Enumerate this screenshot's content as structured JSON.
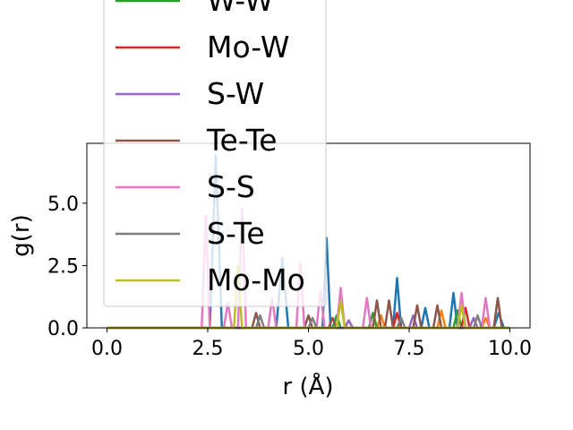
{
  "chart_data": {
    "type": "line",
    "title": "",
    "xlabel": "r (Å)",
    "ylabel": "g(r)",
    "xlim": [
      -0.5,
      10.5
    ],
    "ylim": [
      0.0,
      7.4
    ],
    "xticks": [
      {
        "value": 0.0,
        "label": "0.0"
      },
      {
        "value": 2.5,
        "label": "2.5"
      },
      {
        "value": 5.0,
        "label": "5.0"
      },
      {
        "value": 7.5,
        "label": "7.5"
      },
      {
        "value": 10.0,
        "label": "10.0"
      }
    ],
    "yticks": [
      {
        "value": 0.0,
        "label": "0.0"
      },
      {
        "value": 2.5,
        "label": "2.5"
      },
      {
        "value": 5.0,
        "label": "5.0"
      }
    ],
    "grid": false,
    "legend_location": "upper-left, partially clipped above the figure",
    "series": [
      {
        "name": "",
        "color": "#1f77b4",
        "x": [
          0.0,
          2.2,
          2.55,
          2.7,
          2.85,
          3.2,
          4.2,
          4.35,
          4.5,
          5.35,
          5.45,
          5.55,
          5.9,
          6.8,
          7.1,
          7.2,
          7.3,
          7.8,
          7.9,
          8.0,
          8.5,
          8.6,
          8.7,
          9.6,
          9.72,
          9.85,
          10.0
        ],
        "y": [
          0,
          0,
          0,
          6.9,
          0,
          0,
          0,
          2.8,
          0,
          0,
          3.6,
          0,
          0,
          0,
          0,
          2.0,
          0,
          0,
          0.8,
          0,
          0,
          1.4,
          0,
          0,
          0.6,
          0,
          0
        ]
      },
      {
        "name": "",
        "color": "#ff7f0e",
        "x": [
          0.0,
          6.0,
          6.7,
          6.8,
          6.9,
          8.2,
          8.3,
          8.4,
          9.3,
          9.4,
          9.5,
          10.0
        ],
        "y": [
          0,
          0,
          0,
          0.5,
          0,
          0,
          0.7,
          0,
          0,
          0.4,
          0,
          0
        ]
      },
      {
        "name": "W-W",
        "color": "#2ca02c",
        "x": [
          0.0,
          5.6,
          5.7,
          5.8,
          6.5,
          6.6,
          6.7,
          8.6,
          8.7,
          8.8,
          10.0
        ],
        "y": [
          0,
          0,
          0.5,
          0,
          0,
          0.6,
          0,
          0,
          0.7,
          0,
          0
        ]
      },
      {
        "name": "Mo-W",
        "color": "#d62728",
        "x": [
          0.0,
          7.1,
          7.2,
          7.3,
          8.8,
          8.9,
          9.0,
          10.0
        ],
        "y": [
          0,
          0,
          0.6,
          0,
          0,
          0.8,
          0,
          0
        ]
      },
      {
        "name": "S-W",
        "color": "#9467bd",
        "x": [
          0.0,
          5.9,
          6.0,
          6.1,
          7.5,
          7.6,
          7.7,
          9.0,
          9.1,
          9.2,
          10.0
        ],
        "y": [
          0,
          0,
          0.3,
          0,
          0,
          0.5,
          0,
          0,
          0.4,
          0,
          0
        ]
      },
      {
        "name": "Te-Te",
        "color": "#8c564b",
        "x": [
          0.0,
          3.6,
          3.7,
          3.8,
          4.9,
          5.0,
          5.1,
          5.5,
          5.6,
          5.7,
          6.6,
          6.7,
          6.8,
          6.9,
          7.0,
          7.1,
          7.6,
          7.7,
          7.8,
          8.1,
          8.2,
          8.3,
          9.6,
          9.7,
          9.8,
          10.0
        ],
        "y": [
          0,
          0,
          0.6,
          0,
          0,
          0.5,
          0,
          0,
          0.4,
          0,
          0,
          1.1,
          0,
          0,
          1.1,
          0,
          0,
          0.9,
          0,
          0,
          0.9,
          0,
          0,
          1.2,
          0,
          0
        ]
      },
      {
        "name": "S-S",
        "color": "#e377c2",
        "x": [
          0.0,
          2.35,
          2.45,
          2.55,
          2.9,
          3.0,
          3.1,
          3.25,
          3.35,
          3.45,
          4.0,
          4.1,
          4.2,
          4.7,
          4.8,
          4.9,
          5.2,
          5.3,
          5.4,
          5.7,
          5.8,
          5.9,
          6.35,
          6.45,
          6.55,
          8.7,
          8.8,
          8.9,
          9.3,
          9.4,
          9.5,
          10.0
        ],
        "y": [
          0,
          0,
          4.5,
          0,
          0,
          1.0,
          0,
          0,
          4.8,
          0,
          0,
          1.2,
          0,
          0,
          2.6,
          0,
          0,
          1.5,
          0,
          0,
          1.6,
          0,
          0,
          1.2,
          0,
          0,
          1.4,
          0,
          0,
          1.2,
          0,
          0
        ]
      },
      {
        "name": "S-Te",
        "color": "#7f7f7f",
        "x": [
          0.0,
          3.7,
          3.8,
          3.9,
          5.0,
          5.1,
          5.2,
          7.2,
          7.3,
          7.4,
          9.1,
          9.2,
          9.3,
          10.0
        ],
        "y": [
          0,
          0,
          0.5,
          0,
          0,
          0.4,
          0,
          0,
          0.4,
          0,
          0,
          0.5,
          0,
          0
        ]
      },
      {
        "name": "Mo-Mo",
        "color": "#bcbd22",
        "x": [
          0.0,
          3.15,
          3.25,
          3.35,
          5.7,
          5.8,
          5.9,
          8.7,
          8.8,
          8.9,
          10.0
        ],
        "y": [
          0,
          0,
          2.5,
          0,
          0,
          1.1,
          0,
          0,
          0.9,
          0,
          0
        ]
      }
    ]
  }
}
